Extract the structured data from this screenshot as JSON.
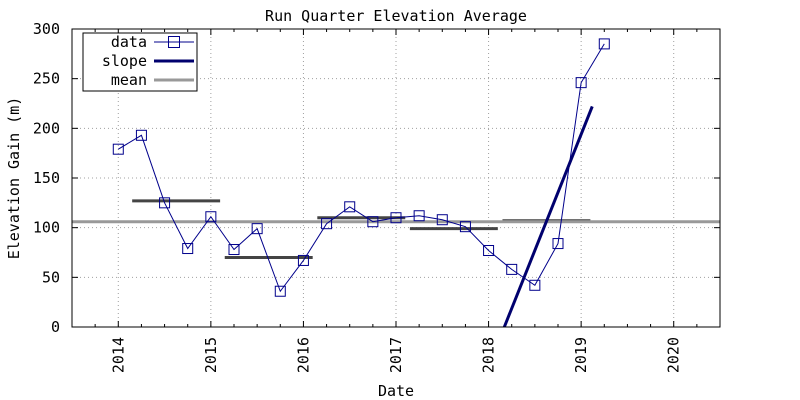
{
  "chart_data": {
    "type": "line",
    "title": "Run Quarter Elevation Average",
    "xlabel": "Date",
    "ylabel": "Elevation Gain (m)",
    "xlim": [
      2013.5,
      2020.5
    ],
    "ylim": [
      0,
      300
    ],
    "x_ticks": [
      {
        "value": 2014,
        "label": "2014"
      },
      {
        "value": 2015,
        "label": "2015"
      },
      {
        "value": 2016,
        "label": "2016"
      },
      {
        "value": 2017,
        "label": "2017"
      },
      {
        "value": 2018,
        "label": "2018"
      },
      {
        "value": 2019,
        "label": "2019"
      },
      {
        "value": 2020,
        "label": "2020"
      }
    ],
    "y_ticks": [
      0,
      50,
      100,
      150,
      200,
      250,
      300
    ],
    "grid": true,
    "legend_position": "top-left",
    "series": [
      {
        "name": "data",
        "style": "line-with-square-markers",
        "color": "#00008b",
        "points": [
          {
            "x": 2014.0,
            "y": 179
          },
          {
            "x": 2014.25,
            "y": 193
          },
          {
            "x": 2014.5,
            "y": 125
          },
          {
            "x": 2014.75,
            "y": 79
          },
          {
            "x": 2015.0,
            "y": 111
          },
          {
            "x": 2015.25,
            "y": 78
          },
          {
            "x": 2015.5,
            "y": 99
          },
          {
            "x": 2015.75,
            "y": 36
          },
          {
            "x": 2016.0,
            "y": 67
          },
          {
            "x": 2016.25,
            "y": 104
          },
          {
            "x": 2016.5,
            "y": 121
          },
          {
            "x": 2016.75,
            "y": 106
          },
          {
            "x": 2017.0,
            "y": 110
          },
          {
            "x": 2017.25,
            "y": 112
          },
          {
            "x": 2017.5,
            "y": 108
          },
          {
            "x": 2017.75,
            "y": 101
          },
          {
            "x": 2018.0,
            "y": 77
          },
          {
            "x": 2018.25,
            "y": 58
          },
          {
            "x": 2018.5,
            "y": 42
          },
          {
            "x": 2018.75,
            "y": 84
          },
          {
            "x": 2019.0,
            "y": 246
          },
          {
            "x": 2019.25,
            "y": 285
          }
        ]
      },
      {
        "name": "slope",
        "style": "thick-line",
        "color": "#00006e",
        "points": [
          {
            "x": 2018.17,
            "y": 0
          },
          {
            "x": 2019.12,
            "y": 222
          }
        ]
      },
      {
        "name": "mean",
        "style": "thick-line",
        "color": "#999999",
        "points": [
          {
            "x": 2013.5,
            "y": 106
          },
          {
            "x": 2020.5,
            "y": 106
          }
        ]
      }
    ],
    "yearly_means": {
      "color": "#444444",
      "segments": [
        {
          "x0": 2014.15,
          "x1": 2015.1,
          "y": 127
        },
        {
          "x0": 2015.15,
          "x1": 2016.1,
          "y": 70
        },
        {
          "x0": 2016.15,
          "x1": 2017.1,
          "y": 110
        },
        {
          "x0": 2017.15,
          "x1": 2018.1,
          "y": 99
        },
        {
          "x0": 2018.15,
          "x1": 2019.1,
          "y": 107
        }
      ]
    }
  }
}
